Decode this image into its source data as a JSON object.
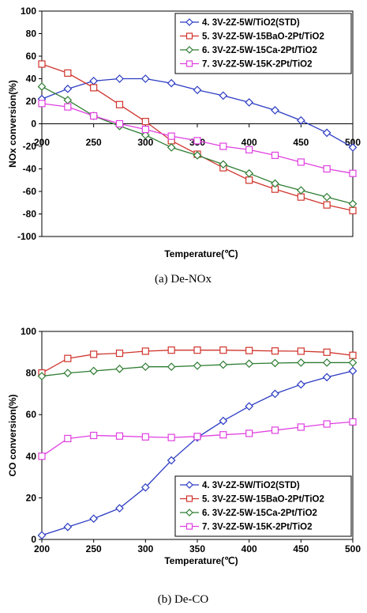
{
  "chart_data": [
    {
      "type": "line",
      "caption": "(a)  De-NOx",
      "xlabel": "Temperature(℃)",
      "ylabel": "NOx conversion(%)",
      "xlim": [
        200,
        500
      ],
      "ylim": [
        -100,
        100
      ],
      "xticks": [
        200,
        250,
        300,
        350,
        400,
        450,
        500
      ],
      "yticks": [
        -100,
        -80,
        -60,
        -40,
        -20,
        0,
        20,
        40,
        60,
        80,
        100
      ],
      "legend_position": "top-right",
      "series": [
        {
          "name": "4. 3V-2Z-5W/TiO2(STD)",
          "color": "#2b3bc2",
          "marker": "diamond",
          "x": [
            200,
            225,
            250,
            275,
            300,
            325,
            350,
            375,
            400,
            425,
            450,
            475,
            500
          ],
          "y": [
            22,
            31,
            38,
            40,
            40,
            36,
            30,
            25,
            19,
            12,
            3,
            -8,
            -21
          ]
        },
        {
          "name": "5. 3V-2Z-5W-15BaO-2Pt/TiO2",
          "color": "#d0342c",
          "marker": "square",
          "x": [
            200,
            225,
            250,
            275,
            300,
            325,
            350,
            375,
            400,
            425,
            450,
            475,
            500
          ],
          "y": [
            53,
            45,
            32,
            17,
            2,
            -15,
            -27,
            -39,
            -50,
            -58,
            -65,
            -72,
            -77
          ]
        },
        {
          "name": "6. 3V-2Z-5W-15Ca-2Pt/TiO2",
          "color": "#2e7d32",
          "marker": "diamond",
          "x": [
            200,
            225,
            250,
            275,
            300,
            325,
            350,
            375,
            400,
            425,
            450,
            475,
            500
          ],
          "y": [
            33,
            21,
            7,
            -2,
            -10,
            -21,
            -28,
            -36,
            -44,
            -53,
            -59,
            -65,
            -71
          ]
        },
        {
          "name": "7. 3V-2Z-5W-15K-2Pt/TiO2",
          "color": "#e040e0",
          "marker": "square",
          "x": [
            200,
            225,
            250,
            275,
            300,
            325,
            350,
            375,
            400,
            425,
            450,
            475,
            500
          ],
          "y": [
            18,
            15,
            7,
            0,
            -5,
            -11,
            -15,
            -20,
            -23,
            -28,
            -34,
            -40,
            -44
          ]
        }
      ]
    },
    {
      "type": "line",
      "caption": "(b)  De-CO",
      "xlabel": "Temperature(℃)",
      "ylabel": "CO conversion(%)",
      "xlim": [
        200,
        500
      ],
      "ylim": [
        0,
        100
      ],
      "xticks": [
        200,
        250,
        300,
        350,
        400,
        450,
        500
      ],
      "yticks": [
        0,
        20,
        40,
        60,
        80,
        100
      ],
      "legend_position": "bottom-right",
      "series": [
        {
          "name": "4. 3V-2Z-5W/TiO2(STD)",
          "color": "#2b3bc2",
          "marker": "diamond",
          "x": [
            200,
            225,
            250,
            275,
            300,
            325,
            350,
            375,
            400,
            425,
            450,
            475,
            500
          ],
          "y": [
            2,
            6,
            10,
            15,
            25,
            38,
            49,
            57,
            64,
            70,
            74.5,
            78,
            81
          ]
        },
        {
          "name": "5. 3V-2Z-5W-15BaO-2Pt/TiO2",
          "color": "#d0342c",
          "marker": "square",
          "x": [
            200,
            225,
            250,
            275,
            300,
            325,
            350,
            375,
            400,
            425,
            450,
            475,
            500
          ],
          "y": [
            80,
            87,
            89,
            89.5,
            90.5,
            91,
            91,
            91,
            90.8,
            90.6,
            90.5,
            90,
            88.5
          ]
        },
        {
          "name": "6. 3V-2Z-5W-15Ca-2Pt/TiO2",
          "color": "#2e7d32",
          "marker": "diamond",
          "x": [
            200,
            225,
            250,
            275,
            300,
            325,
            350,
            375,
            400,
            425,
            450,
            475,
            500
          ],
          "y": [
            78.5,
            80,
            81,
            82,
            83,
            83,
            83.5,
            84,
            84.5,
            84.8,
            85,
            85,
            85
          ]
        },
        {
          "name": "7. 3V-2Z-5W-15K-2Pt/TiO2",
          "color": "#e040e0",
          "marker": "square",
          "x": [
            200,
            225,
            250,
            275,
            300,
            325,
            350,
            375,
            400,
            425,
            450,
            475,
            500
          ],
          "y": [
            40,
            48.5,
            50,
            49.7,
            49.3,
            49,
            49.5,
            50.3,
            51,
            52.5,
            54,
            55.5,
            56.5
          ]
        }
      ]
    }
  ]
}
